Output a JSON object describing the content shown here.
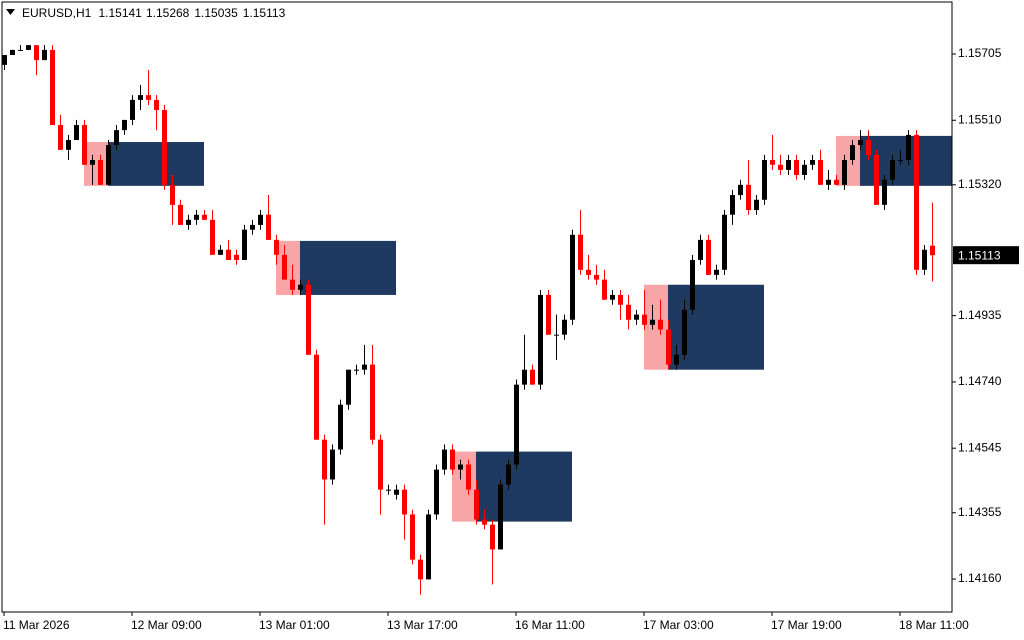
{
  "chart_data": {
    "type": "candlestick",
    "title": "EURUSD,H1",
    "up_color": "#000000",
    "down_color": "#ff0000",
    "zone_colors": [
      "#f8a5a8",
      "#1f3a60"
    ],
    "categories": [
      "11 Mar 2026",
      null,
      null,
      null,
      null,
      null,
      null,
      null,
      null,
      null,
      null,
      null,
      null,
      null,
      null,
      null,
      "12 Mar 09:00",
      null,
      null,
      null,
      null,
      null,
      null,
      null,
      null,
      null,
      null,
      null,
      null,
      null,
      null,
      null,
      "13 Mar 01:00",
      null,
      null,
      null,
      null,
      null,
      null,
      null,
      null,
      null,
      null,
      null,
      null,
      null,
      null,
      null,
      "13 Mar 17:00",
      null,
      null,
      null,
      null,
      null,
      null,
      null,
      null,
      null,
      null,
      null,
      null,
      null,
      null,
      null,
      "16 Mar 11:00",
      null,
      null,
      null,
      null,
      null,
      null,
      null,
      null,
      null,
      null,
      null,
      null,
      null,
      null,
      null,
      "17 Mar 03:00",
      null,
      null,
      null,
      null,
      null,
      null,
      null,
      null,
      null,
      null,
      null,
      null,
      null,
      null,
      null,
      "17 Mar 19:00",
      null,
      null,
      null,
      null,
      null,
      null,
      null,
      null,
      null,
      null,
      null,
      null,
      null,
      null,
      null,
      "18 Mar 11:00",
      null,
      null,
      null,
      null
    ],
    "open": [
      1.15673,
      1.15702,
      1.15717,
      1.15717,
      1.15731,
      1.15687,
      1.15717,
      1.15496,
      1.15423,
      1.15452,
      1.15496,
      1.15379,
      1.15393,
      1.1532,
      1.15437,
      1.15481,
      1.15511,
      1.1557,
      1.15584,
      1.1557,
      1.1554,
      1.1532,
      1.15261,
      1.15202,
      1.15217,
      1.15232,
      1.15217,
      1.15114,
      1.15129,
      1.15114,
      1.15099,
      1.15188,
      1.15202,
      1.15232,
      1.15158,
      1.15114,
      1.15041,
      1.15011,
      1.15026,
      1.1482,
      1.1457,
      1.14453,
      1.14541,
      1.14673,
      1.14776,
      1.14776,
      1.14791,
      1.1457,
      1.14423,
      1.14408,
      1.14423,
      1.1435,
      1.14217,
      1.14159,
      1.1435,
      1.14482,
      1.14541,
      1.14482,
      1.14497,
      1.14423,
      1.14335,
      1.1432,
      1.14247,
      1.14438,
      1.14497,
      1.14732,
      1.14776,
      1.14732,
      1.14996,
      1.14879,
      1.14879,
      1.14923,
      1.15173,
      1.1507,
      1.15055,
      1.15041,
      1.14982,
      1.14996,
      1.14967,
      1.14923,
      1.14938,
      1.14908,
      1.14923,
      1.14894,
      1.14791,
      1.1482,
      1.14952,
      1.15099,
      1.15158,
      1.15055,
      1.1507,
      1.15232,
      1.1529,
      1.1532,
      1.15246,
      1.15276,
      1.15393,
      1.15379,
      1.15364,
      1.15393,
      1.15349,
      1.15379,
      1.15393,
      1.1532,
      1.15335,
      1.1532,
      1.15393,
      1.15437,
      1.15452,
      1.15408,
      1.15261,
      1.15335,
      1.15393,
      1.15393,
      1.15467,
      1.1507,
      1.15141
    ],
    "high": [
      1.15702,
      1.15717,
      1.15731,
      1.15731,
      1.15731,
      1.15731,
      1.15731,
      1.15526,
      1.15467,
      1.15511,
      1.15511,
      1.15408,
      1.15408,
      1.15452,
      1.15496,
      1.15511,
      1.15584,
      1.15614,
      1.15658,
      1.15584,
      1.15555,
      1.15349,
      1.15276,
      1.15232,
      1.15246,
      1.15246,
      1.15246,
      1.15143,
      1.15158,
      1.15129,
      1.15202,
      1.15217,
      1.15246,
      1.1529,
      1.15173,
      1.15143,
      1.15085,
      1.15041,
      1.15041,
      1.14835,
      1.14585,
      1.14556,
      1.14688,
      1.14776,
      1.14791,
      1.14849,
      1.14849,
      1.14585,
      1.14438,
      1.14438,
      1.14438,
      1.14364,
      1.14232,
      1.14364,
      1.14497,
      1.14556,
      1.14556,
      1.14511,
      1.14511,
      1.14453,
      1.14364,
      1.14335,
      1.14453,
      1.14511,
      1.14747,
      1.14879,
      1.14791,
      1.15011,
      1.15011,
      1.14938,
      1.14938,
      1.15188,
      1.15246,
      1.15114,
      1.15085,
      1.1507,
      1.15011,
      1.15011,
      1.14996,
      1.14952,
      1.15011,
      1.14967,
      1.14982,
      1.14923,
      1.14849,
      1.14982,
      1.15114,
      1.15173,
      1.15173,
      1.15085,
      1.15246,
      1.15305,
      1.15335,
      1.15393,
      1.1529,
      1.15408,
      1.15467,
      1.15408,
      1.15408,
      1.15408,
      1.15393,
      1.15408,
      1.15423,
      1.15364,
      1.15349,
      1.15408,
      1.15452,
      1.15481,
      1.15481,
      1.15423,
      1.15349,
      1.15408,
      1.15423,
      1.15481,
      1.15481,
      1.15143,
      1.15268
    ],
    "low": [
      1.15658,
      1.15702,
      1.15717,
      1.15717,
      1.15643,
      1.15687,
      1.15496,
      1.15423,
      1.15393,
      1.15452,
      1.15379,
      1.1532,
      1.1532,
      1.1532,
      1.15423,
      1.15467,
      1.15496,
      1.1554,
      1.15555,
      1.15481,
      1.15305,
      1.15202,
      1.15202,
      1.15188,
      1.15202,
      1.15217,
      1.15114,
      1.15114,
      1.15099,
      1.15085,
      1.15099,
      1.15173,
      1.15188,
      1.15158,
      1.15085,
      1.15041,
      1.14996,
      1.14996,
      1.1482,
      1.1457,
      1.1432,
      1.14438,
      1.14526,
      1.14658,
      1.14761,
      1.14761,
      1.14556,
      1.1435,
      1.14408,
      1.14394,
      1.14276,
      1.14203,
      1.14114,
      1.14159,
      1.14335,
      1.14467,
      1.14467,
      1.14453,
      1.14408,
      1.1432,
      1.14306,
      1.14144,
      1.14247,
      1.14423,
      1.14482,
      1.14717,
      1.14732,
      1.14717,
      1.14879,
      1.14805,
      1.14864,
      1.14908,
      1.15055,
      1.15041,
      1.15026,
      1.14982,
      1.14967,
      1.14923,
      1.14894,
      1.14908,
      1.14894,
      1.14894,
      1.14879,
      1.14776,
      1.14776,
      1.14805,
      1.14938,
      1.15085,
      1.15055,
      1.15041,
      1.15055,
      1.15202,
      1.15276,
      1.15232,
      1.15232,
      1.15261,
      1.15364,
      1.15349,
      1.15349,
      1.15335,
      1.15335,
      1.15364,
      1.1532,
      1.15305,
      1.1532,
      1.15305,
      1.15379,
      1.15423,
      1.15393,
      1.15261,
      1.15246,
      1.1532,
      1.15379,
      1.15379,
      1.15055,
      1.15055,
      1.15035
    ],
    "close": [
      1.15702,
      1.15717,
      1.15717,
      1.15731,
      1.15687,
      1.15717,
      1.15496,
      1.15423,
      1.15452,
      1.15496,
      1.15379,
      1.15393,
      1.1532,
      1.15437,
      1.15481,
      1.15511,
      1.1557,
      1.15584,
      1.1557,
      1.1554,
      1.1532,
      1.15261,
      1.15202,
      1.15217,
      1.15232,
      1.15217,
      1.15114,
      1.15129,
      1.15099,
      1.15099,
      1.15188,
      1.15202,
      1.15232,
      1.15158,
      1.15114,
      1.15041,
      1.15011,
      1.15026,
      1.1482,
      1.1457,
      1.14453,
      1.14541,
      1.14673,
      1.14776,
      1.14776,
      1.14791,
      1.1457,
      1.14423,
      1.14423,
      1.14423,
      1.1435,
      1.14217,
      1.14159,
      1.1435,
      1.14482,
      1.14541,
      1.14482,
      1.14497,
      1.14423,
      1.14335,
      1.1432,
      1.14247,
      1.14438,
      1.14497,
      1.14732,
      1.14776,
      1.14732,
      1.14996,
      1.14879,
      1.14879,
      1.14923,
      1.15173,
      1.1507,
      1.15055,
      1.15041,
      1.14982,
      1.14996,
      1.14967,
      1.14923,
      1.14938,
      1.14908,
      1.14923,
      1.14894,
      1.14791,
      1.1482,
      1.14952,
      1.15099,
      1.15158,
      1.15055,
      1.1507,
      1.15232,
      1.1529,
      1.1532,
      1.15246,
      1.15276,
      1.15393,
      1.15379,
      1.15364,
      1.15393,
      1.15349,
      1.15379,
      1.15393,
      1.1532,
      1.15335,
      1.1532,
      1.15393,
      1.15437,
      1.15452,
      1.15408,
      1.15261,
      1.15335,
      1.15393,
      1.15393,
      1.15467,
      1.1507,
      1.15129,
      1.15113
    ],
    "zones": [
      {
        "start": 10,
        "split": 13,
        "end": 25,
        "top": 1.15446,
        "bottom": 1.15317
      },
      {
        "start": 34,
        "split": 37,
        "end": 49,
        "top": 1.15155,
        "bottom": 1.14996
      },
      {
        "start": 56,
        "split": 59,
        "end": 71,
        "top": 1.14535,
        "bottom": 1.14329
      },
      {
        "start": 80,
        "split": 83,
        "end": 95,
        "top": 1.15026,
        "bottom": 1.14776
      },
      {
        "start": 104,
        "split": 107,
        "end": 118.5,
        "top": 1.15464,
        "bottom": 1.15317
      }
    ],
    "ylim": [
      1.14063,
      1.15858
    ],
    "yticks": [
      1.15705,
      {
        "value": 1.1551,
        "label": "1.15510"
      },
      {
        "value": 1.1532,
        "label": "1.15320"
      },
      1.14935,
      {
        "value": 1.1474,
        "label": "1.14740"
      },
      1.14545,
      1.14355,
      {
        "value": 1.1416,
        "label": "1.14160"
      }
    ]
  }
}
